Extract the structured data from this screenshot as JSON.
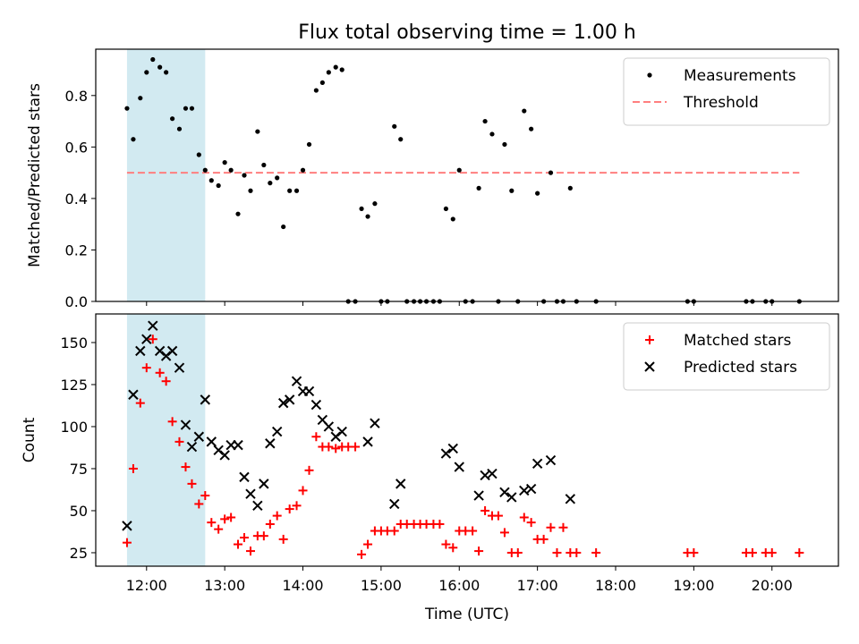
{
  "chart_data": [
    {
      "type": "scatter",
      "title": "Flux total observing time = 1.00 h",
      "ylabel": "Matched/Predicted stars",
      "xlabel": "",
      "xlim_hours": [
        11.35,
        20.85
      ],
      "ylim": [
        0,
        0.98
      ],
      "yticks": [
        0.0,
        0.2,
        0.4,
        0.6,
        0.8
      ],
      "ytick_labels": [
        "0.0",
        "0.2",
        "0.4",
        "0.6",
        "0.8"
      ],
      "show_x_tick_labels": false,
      "grid": false,
      "legend_position": "top-right",
      "highlight_span_hours": [
        11.75,
        12.75
      ],
      "highlight_color": "#add8e6",
      "threshold": {
        "name": "Threshold",
        "value": 0.5,
        "x_range_hours": [
          11.75,
          20.35
        ],
        "color": "#ff7f7f",
        "style": "dashed"
      },
      "series": [
        {
          "name": "Measurements",
          "marker": "dot",
          "color": "#000000",
          "x": [
            11.75,
            11.83,
            11.92,
            12.0,
            12.08,
            12.17,
            12.25,
            12.33,
            12.42,
            12.5,
            12.58,
            12.67,
            12.75,
            12.83,
            12.92,
            13.0,
            13.08,
            13.17,
            13.25,
            13.33,
            13.42,
            13.5,
            13.58,
            13.67,
            13.75,
            13.83,
            13.92,
            14.0,
            14.08,
            14.17,
            14.25,
            14.33,
            14.42,
            14.5,
            14.58,
            14.67,
            14.75,
            14.83,
            14.92,
            15.0,
            15.08,
            15.17,
            15.25,
            15.33,
            15.42,
            15.5,
            15.58,
            15.67,
            15.75,
            15.83,
            15.92,
            16.0,
            16.08,
            16.17,
            16.25,
            16.33,
            16.42,
            16.5,
            16.58,
            16.67,
            16.75,
            16.83,
            16.92,
            17.0,
            17.08,
            17.17,
            17.25,
            17.33,
            17.42,
            17.5,
            17.75,
            18.92,
            19.0,
            19.67,
            19.75,
            19.92,
            20.0,
            20.35
          ],
          "y": [
            0.75,
            0.63,
            0.79,
            0.89,
            0.94,
            0.91,
            0.89,
            0.71,
            0.67,
            0.75,
            0.75,
            0.57,
            0.51,
            0.47,
            0.45,
            0.54,
            0.51,
            0.34,
            0.49,
            0.43,
            0.66,
            0.53,
            0.46,
            0.48,
            0.29,
            0.43,
            0.43,
            0.51,
            0.61,
            0.82,
            0.85,
            0.89,
            0.91,
            0.9,
            0.0,
            0.0,
            0.36,
            0.33,
            0.38,
            0.0,
            0.0,
            0.68,
            0.63,
            0.0,
            0.0,
            0.0,
            0.0,
            0.0,
            0.0,
            0.36,
            0.32,
            0.51,
            0.0,
            0.0,
            0.44,
            0.7,
            0.65,
            0.0,
            0.61,
            0.43,
            0.0,
            0.74,
            0.67,
            0.42,
            0.0,
            0.5,
            0.0,
            0.0,
            0.44,
            0.0,
            0.0,
            0.0,
            0.0,
            0.0,
            0.0,
            0.0,
            0.0,
            0.0
          ]
        }
      ]
    },
    {
      "type": "scatter",
      "title": "",
      "ylabel": "Count",
      "xlabel": "Time (UTC)",
      "xlim_hours": [
        11.35,
        20.85
      ],
      "xticks_hours": [
        12,
        13,
        14,
        15,
        16,
        17,
        18,
        19,
        20
      ],
      "xtick_labels": [
        "12:00",
        "13:00",
        "14:00",
        "15:00",
        "16:00",
        "17:00",
        "18:00",
        "19:00",
        "20:00"
      ],
      "ylim": [
        17,
        167
      ],
      "yticks": [
        25,
        50,
        75,
        100,
        125,
        150
      ],
      "ytick_labels": [
        "25",
        "50",
        "75",
        "100",
        "125",
        "150"
      ],
      "grid": false,
      "legend_position": "top-right",
      "highlight_span_hours": [
        11.75,
        12.75
      ],
      "highlight_color": "#add8e6",
      "series": [
        {
          "name": "Matched stars",
          "marker": "plus",
          "color": "#ff0000",
          "x": [
            11.75,
            11.83,
            11.92,
            12.0,
            12.08,
            12.17,
            12.25,
            12.33,
            12.42,
            12.5,
            12.58,
            12.67,
            12.75,
            12.83,
            12.92,
            13.0,
            13.08,
            13.17,
            13.25,
            13.33,
            13.42,
            13.5,
            13.58,
            13.67,
            13.75,
            13.83,
            13.92,
            14.0,
            14.08,
            14.17,
            14.25,
            14.33,
            14.42,
            14.5,
            14.58,
            14.67,
            14.75,
            14.83,
            14.92,
            15.0,
            15.08,
            15.17,
            15.25,
            15.33,
            15.42,
            15.5,
            15.58,
            15.67,
            15.75,
            15.83,
            15.92,
            16.0,
            16.08,
            16.17,
            16.25,
            16.33,
            16.42,
            16.5,
            16.58,
            16.67,
            16.75,
            16.83,
            16.92,
            17.0,
            17.08,
            17.17,
            17.25,
            17.33,
            17.42,
            17.5,
            17.75,
            18.92,
            19.0,
            19.67,
            19.75,
            19.92,
            20.0,
            20.35
          ],
          "y": [
            31,
            75,
            114,
            135,
            152,
            132,
            127,
            103,
            91,
            76,
            66,
            54,
            59,
            43,
            39,
            45,
            46,
            30,
            34,
            26,
            35,
            35,
            42,
            47,
            33,
            51,
            53,
            62,
            74,
            94,
            88,
            88,
            87,
            88,
            88,
            88,
            24,
            30,
            38,
            38,
            38,
            38,
            42,
            42,
            42,
            42,
            42,
            42,
            42,
            30,
            28,
            38,
            38,
            38,
            26,
            50,
            47,
            47,
            37,
            25,
            25,
            46,
            43,
            33,
            33,
            40,
            25,
            40,
            25,
            25,
            25,
            25,
            25,
            25,
            25,
            25,
            25,
            25
          ]
        },
        {
          "name": "Predicted stars",
          "marker": "x",
          "color": "#000000",
          "x": [
            11.75,
            11.83,
            11.92,
            12.0,
            12.08,
            12.17,
            12.25,
            12.33,
            12.42,
            12.5,
            12.58,
            12.67,
            12.75,
            12.83,
            12.92,
            13.0,
            13.08,
            13.17,
            13.25,
            13.33,
            13.42,
            13.5,
            13.58,
            13.67,
            13.75,
            13.83,
            13.92,
            14.0,
            14.08,
            14.17,
            14.25,
            14.33,
            14.42,
            14.5,
            14.83,
            14.92,
            15.17,
            15.25,
            15.83,
            15.92,
            16.0,
            16.25,
            16.33,
            16.42,
            16.58,
            16.67,
            16.83,
            16.92,
            17.0,
            17.17,
            17.42
          ],
          "y": [
            41,
            119,
            145,
            152,
            160,
            145,
            142,
            145,
            135,
            101,
            88,
            94,
            116,
            91,
            86,
            83,
            89,
            89,
            70,
            60,
            53,
            66,
            90,
            97,
            114,
            116,
            127,
            121,
            121,
            113,
            104,
            100,
            94,
            97,
            91,
            102,
            54,
            66,
            84,
            87,
            76,
            59,
            71,
            72,
            61,
            58,
            62,
            63,
            78,
            80,
            57
          ]
        }
      ]
    }
  ]
}
